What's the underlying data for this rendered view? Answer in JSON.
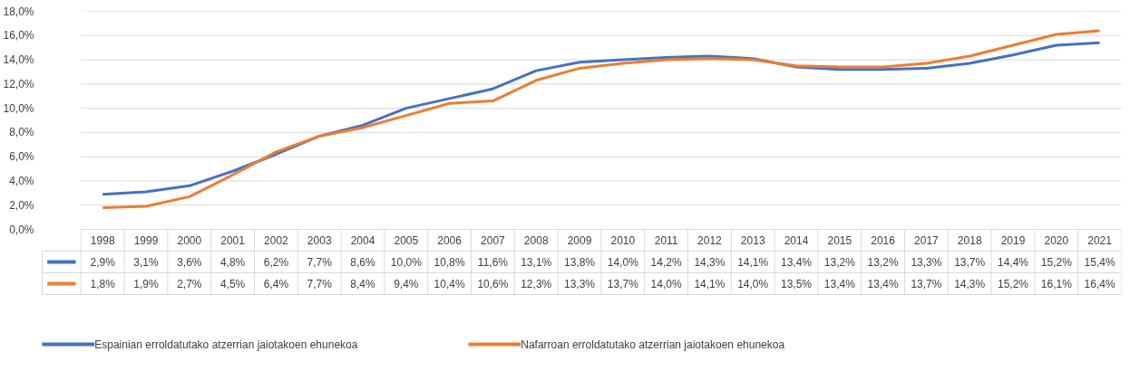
{
  "chart_data": {
    "type": "line",
    "categories": [
      "1998",
      "1999",
      "2000",
      "2001",
      "2002",
      "2003",
      "2004",
      "2005",
      "2006",
      "2007",
      "2008",
      "2009",
      "2010",
      "2011",
      "2012",
      "2013",
      "2014",
      "2015",
      "2016",
      "2017",
      "2018",
      "2019",
      "2020",
      "2021"
    ],
    "series": [
      {
        "name": "Espainian erroldatutako atzerrian jaiotakoen ehunekoa",
        "color": "#4472c4",
        "values": [
          2.9,
          3.1,
          3.6,
          4.8,
          6.2,
          7.7,
          8.6,
          10.0,
          10.8,
          11.6,
          13.1,
          13.8,
          14.0,
          14.2,
          14.3,
          14.1,
          13.4,
          13.2,
          13.2,
          13.3,
          13.7,
          14.4,
          15.2,
          15.4
        ],
        "value_labels": [
          "2,9%",
          "3,1%",
          "3,6%",
          "4,8%",
          "6,2%",
          "7,7%",
          "8,6%",
          "10,0%",
          "10,8%",
          "11,6%",
          "13,1%",
          "13,8%",
          "14,0%",
          "14,2%",
          "14,3%",
          "14,1%",
          "13,4%",
          "13,2%",
          "13,2%",
          "13,3%",
          "13,7%",
          "14,4%",
          "15,2%",
          "15,4%"
        ]
      },
      {
        "name": "Nafarroan erroldatutako atzerrian jaiotakoen ehunekoa",
        "color": "#ed7d31",
        "values": [
          1.8,
          1.9,
          2.7,
          4.5,
          6.4,
          7.7,
          8.4,
          9.4,
          10.4,
          10.6,
          12.3,
          13.3,
          13.7,
          14.0,
          14.1,
          14.0,
          13.5,
          13.4,
          13.4,
          13.7,
          14.3,
          15.2,
          16.1,
          16.4
        ],
        "value_labels": [
          "1,8%",
          "1,9%",
          "2,7%",
          "4,5%",
          "6,4%",
          "7,7%",
          "8,4%",
          "9,4%",
          "10,4%",
          "10,6%",
          "12,3%",
          "13,3%",
          "13,7%",
          "14,0%",
          "14,1%",
          "14,0%",
          "13,5%",
          "13,4%",
          "13,4%",
          "13,7%",
          "14,3%",
          "15,2%",
          "16,1%",
          "16,4%"
        ]
      }
    ],
    "ylim": [
      0,
      18
    ],
    "yticks": [
      {
        "value": 0,
        "label": "0,0%"
      },
      {
        "value": 2,
        "label": "2,0%"
      },
      {
        "value": 4,
        "label": "4,0%"
      },
      {
        "value": 6,
        "label": "6,0%"
      },
      {
        "value": 8,
        "label": "8,0%"
      },
      {
        "value": 10,
        "label": "10,0%"
      },
      {
        "value": 12,
        "label": "12,0%"
      },
      {
        "value": 14,
        "label": "14,0%"
      },
      {
        "value": 16,
        "label": "16,0%"
      },
      {
        "value": 18,
        "label": "18,0%"
      }
    ],
    "grid": "y",
    "legend": "bottom",
    "tick_labels": "y",
    "marker": "none",
    "line_style": "solid"
  }
}
